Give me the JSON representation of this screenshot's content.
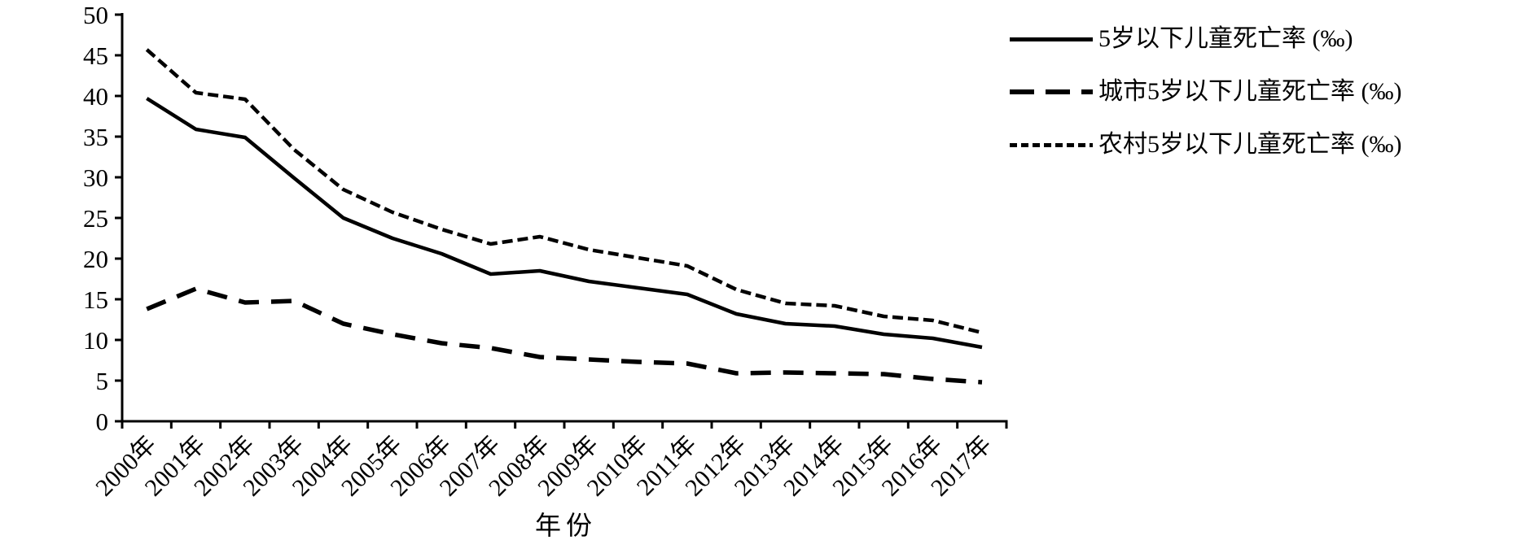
{
  "page": {
    "background_color": "#ffffff",
    "line_color": "#000000"
  },
  "chart_data": {
    "type": "line",
    "title": "",
    "xlabel": "年份",
    "ylabel": "",
    "ylim": [
      0,
      50
    ],
    "y_ticks": [
      0,
      5,
      10,
      15,
      20,
      25,
      30,
      35,
      40,
      45,
      50
    ],
    "grid": false,
    "legend_position": "right-top",
    "x_categories": [
      "2000年",
      "2001年",
      "2002年",
      "2003年",
      "2004年",
      "2005年",
      "2006年",
      "2007年",
      "2008年",
      "2009年",
      "2010年",
      "2011年",
      "2012年",
      "2013年",
      "2014年",
      "2015年",
      "2016年",
      "2017年"
    ],
    "series": [
      {
        "key": "overall",
        "name": "5岁以下儿童死亡率 (‰)",
        "style": "solid",
        "values": [
          39.7,
          35.9,
          34.9,
          29.9,
          25.0,
          22.5,
          20.6,
          18.1,
          18.5,
          17.2,
          16.4,
          15.6,
          13.2,
          12.0,
          11.7,
          10.7,
          10.2,
          9.1
        ]
      },
      {
        "key": "urban",
        "name": "城市5岁以下儿童死亡率 (‰)",
        "style": "long-dash",
        "values": [
          13.8,
          16.3,
          14.6,
          14.8,
          12.0,
          10.7,
          9.6,
          9.0,
          7.9,
          7.6,
          7.3,
          7.1,
          5.9,
          6.0,
          5.9,
          5.8,
          5.2,
          4.8
        ]
      },
      {
        "key": "rural",
        "name": "农村5岁以下儿童死亡率 (‰)",
        "style": "short-dash",
        "values": [
          45.7,
          40.4,
          39.6,
          33.4,
          28.5,
          25.7,
          23.6,
          21.8,
          22.7,
          21.1,
          20.1,
          19.1,
          16.2,
          14.5,
          14.2,
          12.9,
          12.4,
          10.9
        ]
      }
    ]
  }
}
